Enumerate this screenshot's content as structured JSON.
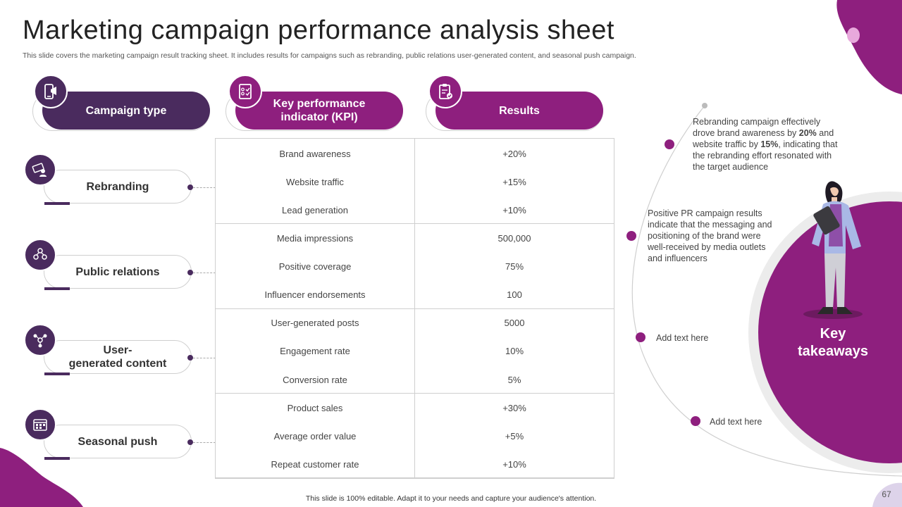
{
  "title": "Marketing campaign performance analysis sheet",
  "subtitle": "This slide covers the marketing campaign result tracking sheet. It includes results for campaigns such as rebranding, public relations user-generated content, and seasonal push campaign.",
  "headers": {
    "campaign_type": "Campaign type",
    "kpi": "Key performance indicator (KPI)",
    "results": "Results"
  },
  "campaigns": [
    {
      "name": "Rebranding",
      "icon": "rebranding-icon",
      "rows": [
        {
          "kpi": "Brand awareness",
          "result": "+20%"
        },
        {
          "kpi": "Website traffic",
          "result": "+15%"
        },
        {
          "kpi": "Lead generation",
          "result": "+10%"
        }
      ]
    },
    {
      "name": "Public relations",
      "icon": "people-network-icon",
      "rows": [
        {
          "kpi": "Media impressions",
          "result": "500,000"
        },
        {
          "kpi": "Positive coverage",
          "result": "75%"
        },
        {
          "kpi": "Influencer endorsements",
          "result": "100"
        }
      ]
    },
    {
      "name": "User-\ngenerated content",
      "icon": "content-network-icon",
      "rows": [
        {
          "kpi": "User-generated  posts",
          "result": "5000"
        },
        {
          "kpi": "Engagement rate",
          "result": "10%"
        },
        {
          "kpi": "Conversion  rate",
          "result": "5%"
        }
      ]
    },
    {
      "name": "Seasonal push",
      "icon": "calendar-icon",
      "rows": [
        {
          "kpi": "Product sales",
          "result": "+30%"
        },
        {
          "kpi": "Average  order value",
          "result": "+5%"
        },
        {
          "kpi": "Repeat customer rate",
          "result": "+10%"
        }
      ]
    }
  ],
  "takeaways": {
    "label": "Key takeaways",
    "items": [
      {
        "pre": "Rebranding campaign effectively drove brand awareness by ",
        "b1": "20%",
        "mid": " and website traffic by ",
        "b2": "15%",
        "post": ", indicating that the rebranding effort resonated with the target audience"
      },
      {
        "text": "Positive PR campaign results indicate that the messaging and positioning of the brand were well-received  by media outlets and influencers"
      },
      {
        "text": "Add text here"
      },
      {
        "text": "Add text here"
      }
    ]
  },
  "footer": "This slide is 100% editable. Adapt it to your needs and capture your audience's attention.",
  "page_number": "67",
  "colors": {
    "dark_purple": "#4a2b5e",
    "magenta": "#8e1f7e",
    "light_lilac": "#d9c9e4"
  }
}
